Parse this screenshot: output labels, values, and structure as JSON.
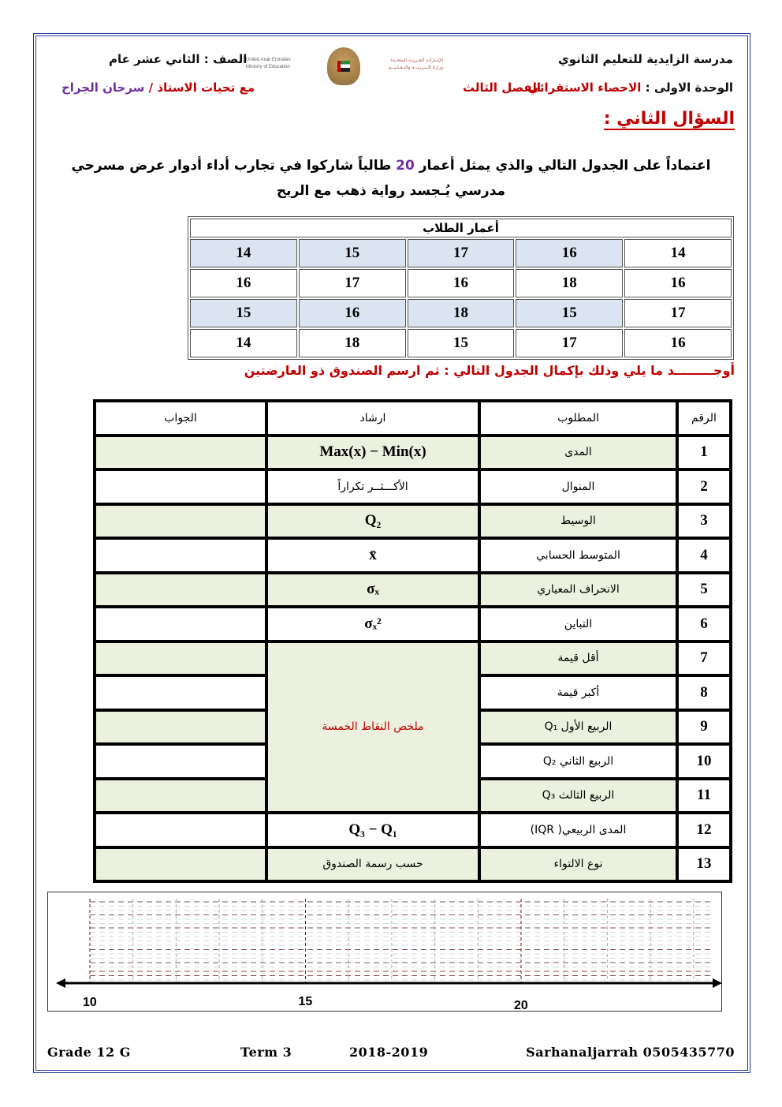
{
  "header": {
    "school": "مدرسة الزايدية للتعليم الثانوي",
    "grade": "الصف : الثاني عشر عام",
    "unit_label": "الوحدة الاولى :",
    "unit_name": "الاحصاء الاستقرائي",
    "term": "الفصل الثالث",
    "greeting": "مع تحيات الاستاذ /",
    "teacher": "سرحان الجراح",
    "ministry_en_1": "United Arab Emirates",
    "ministry_en_2": "Ministry of Education",
    "ministry_ar_1": "الإمـارات العـربيـة المتحـدة",
    "ministry_ar_2": "وزارة الـتـربـيــة والتـعـلـيــم"
  },
  "question": {
    "title": "السؤال الثاني :",
    "intro_1": "اعتماداً على الجدول التالي والذي يمثل أعمار",
    "count": "20",
    "intro_2": "طالباً شاركوا في تجارب أداء أدوار عرض مسرحي مدرسي يُـجسد رواية ذهب مع الريح",
    "instruction": "أوجـــــــــد ما يلي وذلك بإكمال الجدول التالي : ثم ارسم الصندوق ذو العارضتين"
  },
  "ages_table": {
    "title": "أعمار الطلاب",
    "rows": [
      [
        "14",
        "16",
        "17",
        "15",
        "14"
      ],
      [
        "16",
        "18",
        "16",
        "17",
        "16"
      ],
      [
        "17",
        "15",
        "18",
        "16",
        "15"
      ],
      [
        "16",
        "17",
        "15",
        "18",
        "14"
      ]
    ]
  },
  "main_table": {
    "headers": [
      "الرقم",
      "المطلوب",
      "ارشاد",
      "الجواب"
    ],
    "rows": [
      {
        "n": "1",
        "req": "المدى",
        "hint": "Max(x) − Min(x)"
      },
      {
        "n": "2",
        "req": "المنوال",
        "hint": "الأكـــثــر تكراراً"
      },
      {
        "n": "3",
        "req": "الوسيط",
        "hint": "Q₂"
      },
      {
        "n": "4",
        "req": "المتوسط الحسابي",
        "hint": "x̄"
      },
      {
        "n": "5",
        "req": "الانحراف المعياري",
        "hint": "σₓ"
      },
      {
        "n": "6",
        "req": "التباين",
        "hint": "σₓ²"
      },
      {
        "n": "7",
        "req": "أقل قيمة"
      },
      {
        "n": "8",
        "req": "أكبر قيمة"
      },
      {
        "n": "9",
        "req": "الربيع الأول Q₁"
      },
      {
        "n": "10",
        "req": "الربيع الثاني Q₂"
      },
      {
        "n": "11",
        "req": "الربيع الثالث Q₃"
      },
      {
        "n": "12",
        "req": "المدى الربيعي( IQR)",
        "hint": "Q₃ − Q₁"
      },
      {
        "n": "13",
        "req": "نوع الالتواء",
        "hint": "حسب رسمة الصندوق"
      }
    ],
    "five_number_summary": "ملخص النقاط الخمسة"
  },
  "number_line": {
    "min": 10,
    "max": 25,
    "labels": [
      "10",
      "15",
      "20"
    ]
  },
  "footer": {
    "grade": "Grade  12 G",
    "term": "Term 3",
    "year": "2018-2019",
    "author": "Sarhanaljarrah 0505435770"
  }
}
